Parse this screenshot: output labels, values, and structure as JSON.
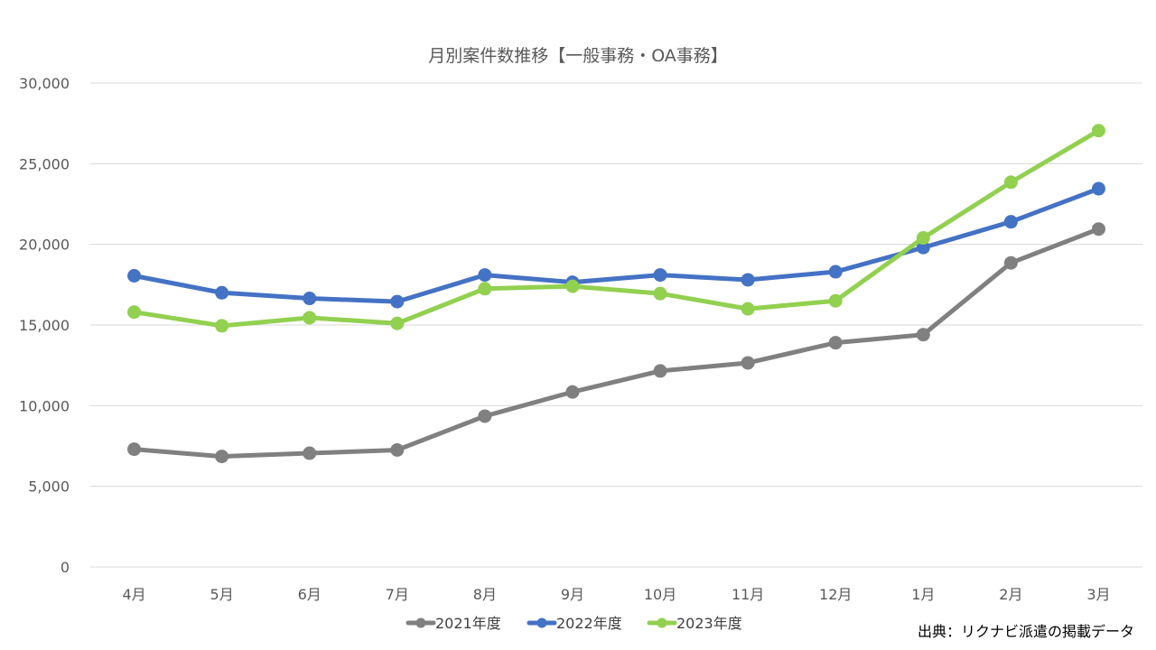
{
  "chart_data": {
    "type": "line",
    "title": "月別案件数推移【一般事務・OA事務】",
    "categories": [
      "4月",
      "5月",
      "6月",
      "7月",
      "8月",
      "9月",
      "10月",
      "11月",
      "12月",
      "1月",
      "2月",
      "3月"
    ],
    "yticks": [
      "0",
      "5,000",
      "10,000",
      "15,000",
      "20,000",
      "25,000",
      "30,000"
    ],
    "ylim": [
      0,
      30000
    ],
    "grid": true,
    "legend_position": "bottom",
    "series": [
      {
        "name": "2021年度",
        "color": "#808080",
        "values": [
          7300,
          6850,
          7050,
          7250,
          9350,
          10850,
          12150,
          12650,
          13900,
          14400,
          18850,
          20950
        ]
      },
      {
        "name": "2022年度",
        "color": "#4472c4",
        "values": [
          18050,
          17000,
          16650,
          16450,
          18100,
          17650,
          18100,
          17800,
          18300,
          19800,
          21400,
          23450
        ]
      },
      {
        "name": "2023年度",
        "color": "#92d050",
        "values": [
          15800,
          14950,
          15450,
          15100,
          17250,
          17400,
          16950,
          16000,
          16500,
          20400,
          23850,
          27050
        ]
      }
    ],
    "source": "出典：リクナビ派遣の掲載データ"
  }
}
